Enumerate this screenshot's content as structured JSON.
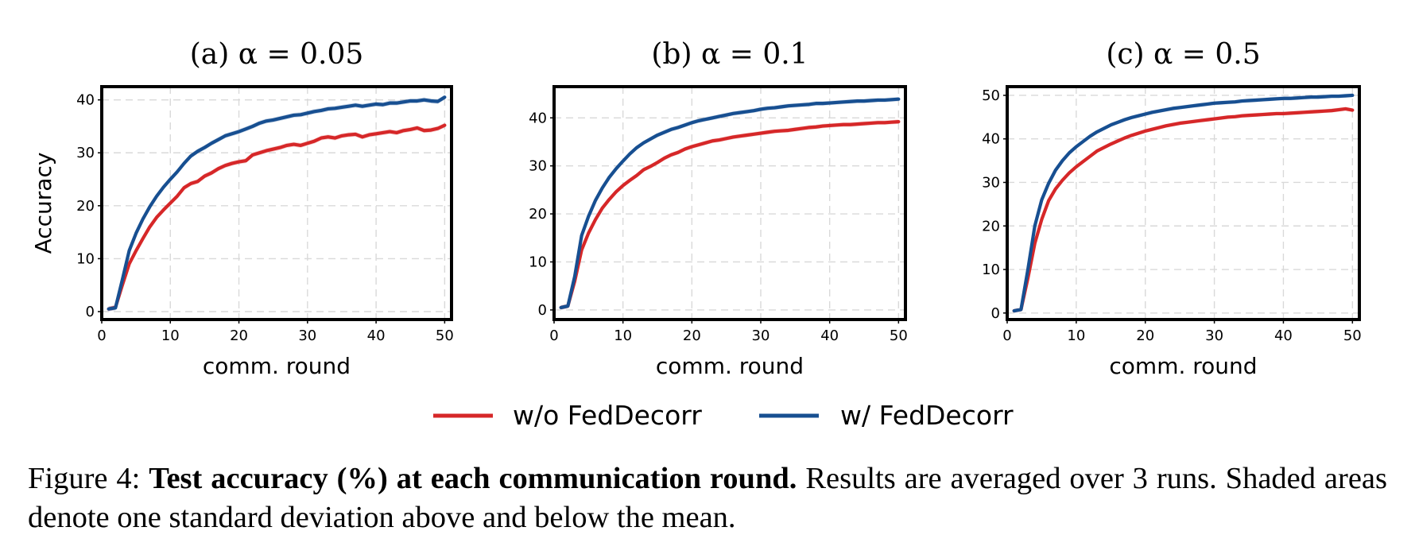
{
  "chart_data": [
    {
      "type": "line",
      "title": "(a)  α = 0.05",
      "xlabel": "comm. round",
      "ylabel": "Accuracy",
      "xlim": [
        0,
        51
      ],
      "ylim": [
        -1.5,
        42.5
      ],
      "xticks": [
        0,
        10,
        20,
        30,
        40,
        50
      ],
      "yticks": [
        0,
        10,
        20,
        30,
        40
      ],
      "grid": true,
      "x": [
        1,
        2,
        3,
        4,
        5,
        6,
        7,
        8,
        9,
        10,
        11,
        12,
        13,
        14,
        15,
        16,
        17,
        18,
        19,
        20,
        21,
        22,
        23,
        24,
        25,
        26,
        27,
        28,
        29,
        30,
        31,
        32,
        33,
        34,
        35,
        36,
        37,
        38,
        39,
        40,
        41,
        42,
        43,
        44,
        45,
        46,
        47,
        48,
        49,
        50
      ],
      "series": [
        {
          "name": "w/o FedDecorr",
          "color": "#d62728",
          "values": [
            0.5,
            0.8,
            5.0,
            9.0,
            11.5,
            13.8,
            16.0,
            17.8,
            19.2,
            20.5,
            21.8,
            23.4,
            24.2,
            24.6,
            25.6,
            26.2,
            27.0,
            27.6,
            28.0,
            28.3,
            28.5,
            29.6,
            30.0,
            30.4,
            30.7,
            31.0,
            31.4,
            31.6,
            31.4,
            31.8,
            32.2,
            32.8,
            33.0,
            32.8,
            33.2,
            33.4,
            33.5,
            33.0,
            33.4,
            33.6,
            33.8,
            34.0,
            33.8,
            34.2,
            34.4,
            34.7,
            34.2,
            34.3,
            34.6,
            35.2
          ]
        },
        {
          "name": "w/ FedDecorr",
          "color": "#174f91",
          "values": [
            0.5,
            0.7,
            6.0,
            11.5,
            14.8,
            17.5,
            19.8,
            21.8,
            23.5,
            25.0,
            26.4,
            28.0,
            29.4,
            30.3,
            31.0,
            31.8,
            32.5,
            33.2,
            33.6,
            34.0,
            34.5,
            35.0,
            35.6,
            36.0,
            36.2,
            36.5,
            36.8,
            37.1,
            37.2,
            37.5,
            37.8,
            38.0,
            38.3,
            38.4,
            38.6,
            38.8,
            39.0,
            38.8,
            39.0,
            39.2,
            39.1,
            39.4,
            39.4,
            39.6,
            39.8,
            39.8,
            40.0,
            39.8,
            39.7,
            40.5
          ]
        }
      ]
    },
    {
      "type": "line",
      "title": "(b)  α = 0.1",
      "xlabel": "comm. round",
      "ylabel": "",
      "xlim": [
        0,
        51
      ],
      "ylim": [
        -2,
        46.5
      ],
      "xticks": [
        0,
        10,
        20,
        30,
        40,
        50
      ],
      "yticks": [
        0,
        10,
        20,
        30,
        40
      ],
      "grid": true,
      "x": [
        1,
        2,
        3,
        4,
        5,
        6,
        7,
        8,
        9,
        10,
        11,
        12,
        13,
        14,
        15,
        16,
        17,
        18,
        19,
        20,
        21,
        22,
        23,
        24,
        25,
        26,
        27,
        28,
        29,
        30,
        31,
        32,
        33,
        34,
        35,
        36,
        37,
        38,
        39,
        40,
        41,
        42,
        43,
        44,
        45,
        46,
        47,
        48,
        49,
        50
      ],
      "series": [
        {
          "name": "w/o FedDecorr",
          "color": "#d62728",
          "values": [
            0.5,
            0.8,
            6.0,
            12.5,
            16.0,
            18.8,
            21.2,
            23.0,
            24.6,
            25.9,
            27.0,
            28.0,
            29.2,
            29.9,
            30.7,
            31.6,
            32.3,
            32.8,
            33.5,
            34.0,
            34.4,
            34.8,
            35.2,
            35.4,
            35.7,
            36.0,
            36.2,
            36.4,
            36.6,
            36.8,
            37.0,
            37.2,
            37.3,
            37.4,
            37.6,
            37.8,
            38.0,
            38.1,
            38.3,
            38.4,
            38.5,
            38.6,
            38.6,
            38.7,
            38.8,
            38.9,
            39.0,
            39.0,
            39.1,
            39.2
          ]
        },
        {
          "name": "w/ FedDecorr",
          "color": "#174f91",
          "values": [
            0.5,
            0.8,
            7.0,
            15.5,
            19.5,
            22.8,
            25.4,
            27.6,
            29.4,
            31.0,
            32.5,
            33.8,
            34.8,
            35.6,
            36.4,
            37.0,
            37.6,
            38.0,
            38.5,
            39.0,
            39.4,
            39.7,
            40.0,
            40.3,
            40.6,
            40.9,
            41.1,
            41.3,
            41.5,
            41.8,
            42.0,
            42.1,
            42.3,
            42.5,
            42.6,
            42.7,
            42.8,
            43.0,
            43.0,
            43.1,
            43.2,
            43.3,
            43.4,
            43.5,
            43.5,
            43.6,
            43.7,
            43.7,
            43.8,
            43.9
          ]
        }
      ]
    },
    {
      "type": "line",
      "title": "(c)  α = 0.5",
      "xlabel": "comm. round",
      "ylabel": "",
      "xlim": [
        0,
        51
      ],
      "ylim": [
        -1.5,
        52
      ],
      "xticks": [
        0,
        10,
        20,
        30,
        40,
        50
      ],
      "yticks": [
        0,
        10,
        20,
        30,
        40,
        50
      ],
      "grid": true,
      "x": [
        1,
        2,
        3,
        4,
        5,
        6,
        7,
        8,
        9,
        10,
        11,
        12,
        13,
        14,
        15,
        16,
        17,
        18,
        19,
        20,
        21,
        22,
        23,
        24,
        25,
        26,
        27,
        28,
        29,
        30,
        31,
        32,
        33,
        34,
        35,
        36,
        37,
        38,
        39,
        40,
        41,
        42,
        43,
        44,
        45,
        46,
        47,
        48,
        49,
        50
      ],
      "series": [
        {
          "name": "w/o FedDecorr",
          "color": "#d62728",
          "values": [
            0.5,
            0.8,
            8.0,
            16.0,
            21.5,
            25.8,
            28.5,
            30.5,
            32.2,
            33.6,
            34.8,
            36.0,
            37.2,
            38.0,
            38.8,
            39.5,
            40.2,
            40.8,
            41.3,
            41.8,
            42.2,
            42.6,
            43.0,
            43.3,
            43.6,
            43.8,
            44.0,
            44.2,
            44.4,
            44.6,
            44.8,
            45.0,
            45.1,
            45.3,
            45.4,
            45.5,
            45.6,
            45.7,
            45.8,
            45.8,
            45.9,
            46.0,
            46.1,
            46.2,
            46.3,
            46.4,
            46.5,
            46.7,
            46.9,
            46.6
          ]
        },
        {
          "name": "w/ FedDecorr",
          "color": "#174f91",
          "values": [
            0.5,
            0.8,
            10.0,
            20.0,
            26.0,
            29.8,
            32.8,
            35.0,
            36.8,
            38.2,
            39.4,
            40.6,
            41.6,
            42.4,
            43.2,
            43.8,
            44.4,
            44.9,
            45.3,
            45.7,
            46.1,
            46.4,
            46.7,
            47.0,
            47.2,
            47.4,
            47.6,
            47.8,
            48.0,
            48.2,
            48.3,
            48.4,
            48.5,
            48.7,
            48.8,
            48.9,
            49.0,
            49.1,
            49.2,
            49.3,
            49.3,
            49.4,
            49.5,
            49.6,
            49.6,
            49.7,
            49.8,
            49.8,
            49.9,
            50.0
          ]
        }
      ]
    }
  ],
  "legend": [
    {
      "label": "w/o FedDecorr",
      "color": "#d62728"
    },
    {
      "label": "w/ FedDecorr",
      "color": "#174f91"
    }
  ],
  "caption": {
    "prefix": "Figure 4: ",
    "bold": "Test accuracy (%) at each communication round.",
    "rest": " Results are averaged over 3 runs. Shaded areas denote one standard deviation above and below the mean."
  }
}
